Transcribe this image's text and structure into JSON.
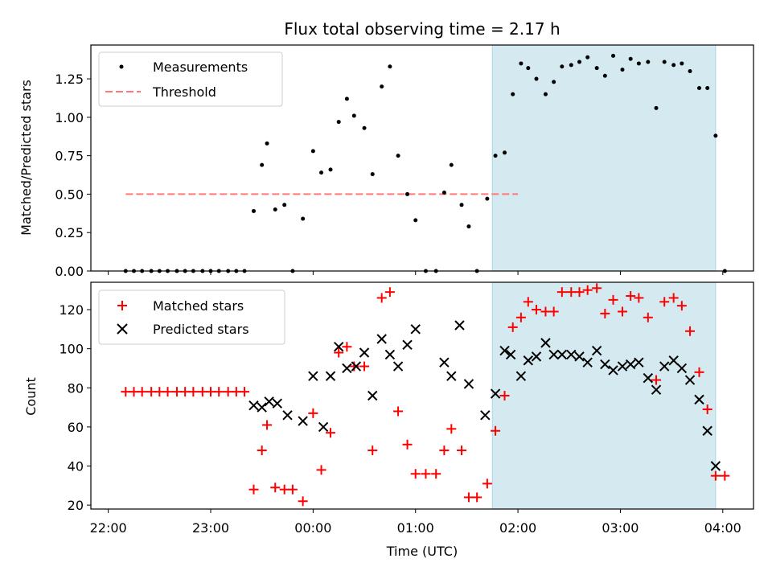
{
  "title": "Flux total observing time = 2.17 h",
  "colors": {
    "measurement": "#000000",
    "threshold": "#ff7777",
    "matched": "#ff0000",
    "predicted": "#000000",
    "shade": "#d4eaf0",
    "shade_edge": "#a9d6e5"
  },
  "chart_data": [
    {
      "type": "scatter",
      "ylabel": "Matched/Predicted stars",
      "xlabel": "",
      "ylim": [
        0,
        1.47
      ],
      "yticks": [
        0.0,
        0.25,
        0.5,
        0.75,
        1.0,
        1.25
      ],
      "ytick_labels": [
        "0.00",
        "0.25",
        "0.50",
        "0.75",
        "1.00",
        "1.25"
      ],
      "legend": [
        "Measurements",
        "Threshold"
      ],
      "legend_position": "top-left",
      "threshold": {
        "value": 0.5,
        "x_range": [
          22.17,
          26.0
        ]
      },
      "shaded_interval": [
        25.75,
        27.93
      ],
      "series": [
        {
          "name": "Measurements",
          "points": [
            [
              22.17,
              0
            ],
            [
              22.25,
              0
            ],
            [
              22.33,
              0
            ],
            [
              22.42,
              0
            ],
            [
              22.5,
              0
            ],
            [
              22.58,
              0
            ],
            [
              22.67,
              0
            ],
            [
              22.75,
              0
            ],
            [
              22.83,
              0
            ],
            [
              22.92,
              0
            ],
            [
              23.0,
              0
            ],
            [
              23.08,
              0
            ],
            [
              23.17,
              0
            ],
            [
              23.25,
              0
            ],
            [
              23.33,
              0
            ],
            [
              23.42,
              0.39
            ],
            [
              23.5,
              0.69
            ],
            [
              23.55,
              0.83
            ],
            [
              23.63,
              0.4
            ],
            [
              23.72,
              0.43
            ],
            [
              23.8,
              0.0
            ],
            [
              23.9,
              0.34
            ],
            [
              24.0,
              0.78
            ],
            [
              24.08,
              0.64
            ],
            [
              24.17,
              0.66
            ],
            [
              24.25,
              0.97
            ],
            [
              24.33,
              1.12
            ],
            [
              24.4,
              1.01
            ],
            [
              24.5,
              0.93
            ],
            [
              24.58,
              0.63
            ],
            [
              24.67,
              1.2
            ],
            [
              24.75,
              1.33
            ],
            [
              24.83,
              0.75
            ],
            [
              24.92,
              0.5
            ],
            [
              25.0,
              0.33
            ],
            [
              25.1,
              0.0
            ],
            [
              25.2,
              0.0
            ],
            [
              25.28,
              0.51
            ],
            [
              25.35,
              0.69
            ],
            [
              25.45,
              0.43
            ],
            [
              25.52,
              0.29
            ],
            [
              25.6,
              0.0
            ],
            [
              25.7,
              0.47
            ],
            [
              25.78,
              0.75
            ],
            [
              25.87,
              0.77
            ],
            [
              25.95,
              1.15
            ],
            [
              26.03,
              1.35
            ],
            [
              26.1,
              1.32
            ],
            [
              26.18,
              1.25
            ],
            [
              26.27,
              1.15
            ],
            [
              26.35,
              1.23
            ],
            [
              26.43,
              1.33
            ],
            [
              26.52,
              1.34
            ],
            [
              26.6,
              1.36
            ],
            [
              26.68,
              1.39
            ],
            [
              26.77,
              1.32
            ],
            [
              26.85,
              1.27
            ],
            [
              26.93,
              1.4
            ],
            [
              27.02,
              1.31
            ],
            [
              27.1,
              1.38
            ],
            [
              27.18,
              1.35
            ],
            [
              27.27,
              1.36
            ],
            [
              27.35,
              1.06
            ],
            [
              27.43,
              1.36
            ],
            [
              27.52,
              1.34
            ],
            [
              27.6,
              1.35
            ],
            [
              27.68,
              1.3
            ],
            [
              27.77,
              1.19
            ],
            [
              27.85,
              1.19
            ],
            [
              27.93,
              0.88
            ],
            [
              28.02,
              0.0
            ]
          ]
        }
      ]
    },
    {
      "type": "scatter",
      "ylabel": "Count",
      "xlabel": "Time (UTC)",
      "ylim": [
        18,
        134
      ],
      "yticks": [
        20,
        40,
        60,
        80,
        100,
        120
      ],
      "ytick_labels": [
        "20",
        "40",
        "60",
        "80",
        "100",
        "120"
      ],
      "xticks": [
        22,
        23,
        24,
        25,
        26,
        27,
        28
      ],
      "xtick_labels": [
        "22:00",
        "23:00",
        "00:00",
        "01:00",
        "02:00",
        "03:00",
        "04:00"
      ],
      "xlim": [
        21.83,
        28.3
      ],
      "legend": [
        "Matched stars",
        "Predicted stars"
      ],
      "legend_position": "top-left",
      "shaded_interval": [
        25.75,
        27.93
      ],
      "series": [
        {
          "name": "Matched stars",
          "points": [
            [
              22.17,
              78
            ],
            [
              22.25,
              78
            ],
            [
              22.33,
              78
            ],
            [
              22.42,
              78
            ],
            [
              22.5,
              78
            ],
            [
              22.58,
              78
            ],
            [
              22.67,
              78
            ],
            [
              22.75,
              78
            ],
            [
              22.83,
              78
            ],
            [
              22.92,
              78
            ],
            [
              23.0,
              78
            ],
            [
              23.08,
              78
            ],
            [
              23.17,
              78
            ],
            [
              23.25,
              78
            ],
            [
              23.33,
              78
            ],
            [
              23.42,
              28
            ],
            [
              23.5,
              48
            ],
            [
              23.55,
              61
            ],
            [
              23.63,
              29
            ],
            [
              23.72,
              28
            ],
            [
              23.8,
              28
            ],
            [
              23.9,
              22
            ],
            [
              24.0,
              67
            ],
            [
              24.08,
              38
            ],
            [
              24.17,
              57
            ],
            [
              24.25,
              98
            ],
            [
              24.33,
              101
            ],
            [
              24.4,
              91
            ],
            [
              24.5,
              91
            ],
            [
              24.58,
              48
            ],
            [
              24.67,
              126
            ],
            [
              24.75,
              129
            ],
            [
              24.83,
              68
            ],
            [
              24.92,
              51
            ],
            [
              25.0,
              36
            ],
            [
              25.1,
              36
            ],
            [
              25.2,
              36
            ],
            [
              25.28,
              48
            ],
            [
              25.35,
              59
            ],
            [
              25.45,
              48
            ],
            [
              25.52,
              24
            ],
            [
              25.6,
              24
            ],
            [
              25.7,
              31
            ],
            [
              25.78,
              58
            ],
            [
              25.87,
              76
            ],
            [
              25.95,
              111
            ],
            [
              26.03,
              116
            ],
            [
              26.1,
              124
            ],
            [
              26.18,
              120
            ],
            [
              26.27,
              119
            ],
            [
              26.35,
              119
            ],
            [
              26.43,
              129
            ],
            [
              26.52,
              129
            ],
            [
              26.6,
              129
            ],
            [
              26.68,
              130
            ],
            [
              26.77,
              131
            ],
            [
              26.85,
              118
            ],
            [
              26.93,
              125
            ],
            [
              27.02,
              119
            ],
            [
              27.1,
              127
            ],
            [
              27.18,
              126
            ],
            [
              27.27,
              116
            ],
            [
              27.35,
              84
            ],
            [
              27.43,
              124
            ],
            [
              27.52,
              126
            ],
            [
              27.6,
              122
            ],
            [
              27.68,
              109
            ],
            [
              27.77,
              88
            ],
            [
              27.85,
              69
            ],
            [
              27.93,
              35
            ],
            [
              28.02,
              35
            ]
          ]
        },
        {
          "name": "Predicted stars",
          "points": [
            [
              23.42,
              71
            ],
            [
              23.5,
              70
            ],
            [
              23.57,
              73
            ],
            [
              23.65,
              72
            ],
            [
              23.75,
              66
            ],
            [
              23.9,
              63
            ],
            [
              24.0,
              86
            ],
            [
              24.1,
              60
            ],
            [
              24.17,
              86
            ],
            [
              24.25,
              101
            ],
            [
              24.33,
              90
            ],
            [
              24.42,
              91
            ],
            [
              24.5,
              98
            ],
            [
              24.58,
              76
            ],
            [
              24.67,
              105
            ],
            [
              24.75,
              97
            ],
            [
              24.83,
              91
            ],
            [
              24.92,
              102
            ],
            [
              25.0,
              110
            ],
            [
              25.28,
              93
            ],
            [
              25.35,
              86
            ],
            [
              25.43,
              112
            ],
            [
              25.52,
              82
            ],
            [
              25.68,
              66
            ],
            [
              25.78,
              77
            ],
            [
              25.87,
              99
            ],
            [
              25.93,
              97
            ],
            [
              26.03,
              86
            ],
            [
              26.1,
              94
            ],
            [
              26.18,
              96
            ],
            [
              26.27,
              103
            ],
            [
              26.35,
              97
            ],
            [
              26.43,
              97
            ],
            [
              26.52,
              97
            ],
            [
              26.6,
              96
            ],
            [
              26.68,
              93
            ],
            [
              26.77,
              99
            ],
            [
              26.85,
              92
            ],
            [
              26.93,
              89
            ],
            [
              27.02,
              91
            ],
            [
              27.1,
              92
            ],
            [
              27.18,
              93
            ],
            [
              27.27,
              85
            ],
            [
              27.35,
              79
            ],
            [
              27.43,
              91
            ],
            [
              27.52,
              94
            ],
            [
              27.6,
              90
            ],
            [
              27.68,
              84
            ],
            [
              27.77,
              74
            ],
            [
              27.85,
              58
            ],
            [
              27.93,
              40
            ]
          ]
        }
      ]
    }
  ]
}
